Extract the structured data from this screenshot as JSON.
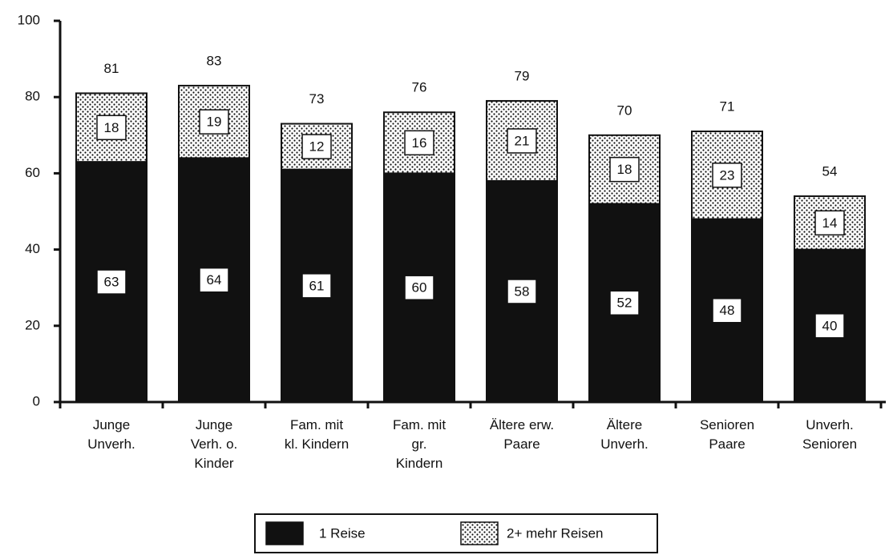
{
  "chart_data": {
    "type": "stacked_bar",
    "categories": [
      [
        "Junge",
        "Unverh."
      ],
      [
        "Junge",
        "Verh. o.",
        "Kinder"
      ],
      [
        "Fam. mit",
        "kl. Kindern"
      ],
      [
        "Fam. mit",
        "gr.",
        "Kindern"
      ],
      [
        "Ältere erw.",
        "Paare"
      ],
      [
        "Ältere",
        "Unverh."
      ],
      [
        "Senioren",
        "Paare"
      ],
      [
        "Unverh.",
        "Senioren"
      ]
    ],
    "series": [
      {
        "name": "1 Reise",
        "color": "#111111",
        "values": [
          63,
          64,
          61,
          60,
          58,
          52,
          48,
          40
        ]
      },
      {
        "name": "2+ mehr Reisen",
        "color": "#ffffff",
        "values": [
          18,
          19,
          12,
          16,
          21,
          18,
          23,
          14
        ]
      }
    ],
    "totals": [
      81,
      83,
      73,
      76,
      79,
      70,
      71,
      54
    ],
    "ylim": [
      0,
      100
    ],
    "yticks": [
      0,
      20,
      40,
      60,
      80,
      100
    ],
    "grid": false,
    "legend": "bottom"
  }
}
